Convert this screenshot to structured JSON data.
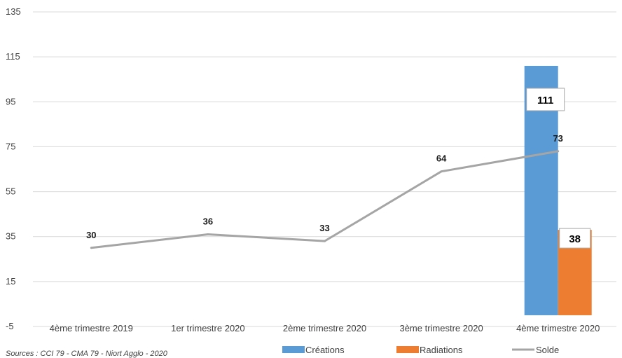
{
  "chart_data": {
    "type": "bar",
    "categories": [
      "4ème trimestre 2019",
      "1er trimestre 2020",
      "2ème trimestre 2020",
      "3ème trimestre 2020",
      "4ème trimestre 2020"
    ],
    "series": [
      {
        "name": "Créations",
        "type": "bar",
        "color": "#5b9bd5",
        "values": [
          null,
          null,
          null,
          null,
          111
        ]
      },
      {
        "name": "Radiations",
        "type": "bar",
        "color": "#ed7d31",
        "values": [
          null,
          null,
          null,
          null,
          38
        ]
      },
      {
        "name": "Solde",
        "type": "line",
        "color": "#a5a5a5",
        "values": [
          30,
          36,
          33,
          64,
          73
        ]
      }
    ],
    "yticks": [
      "135",
      "115",
      "95",
      "75",
      "55",
      "35",
      "15",
      "-5"
    ],
    "ylim": [
      -5,
      135
    ],
    "grid": true,
    "legend": "bottom",
    "source": "Sources : CCI 79 - CMA 79 - Niort Agglo - 2020"
  }
}
